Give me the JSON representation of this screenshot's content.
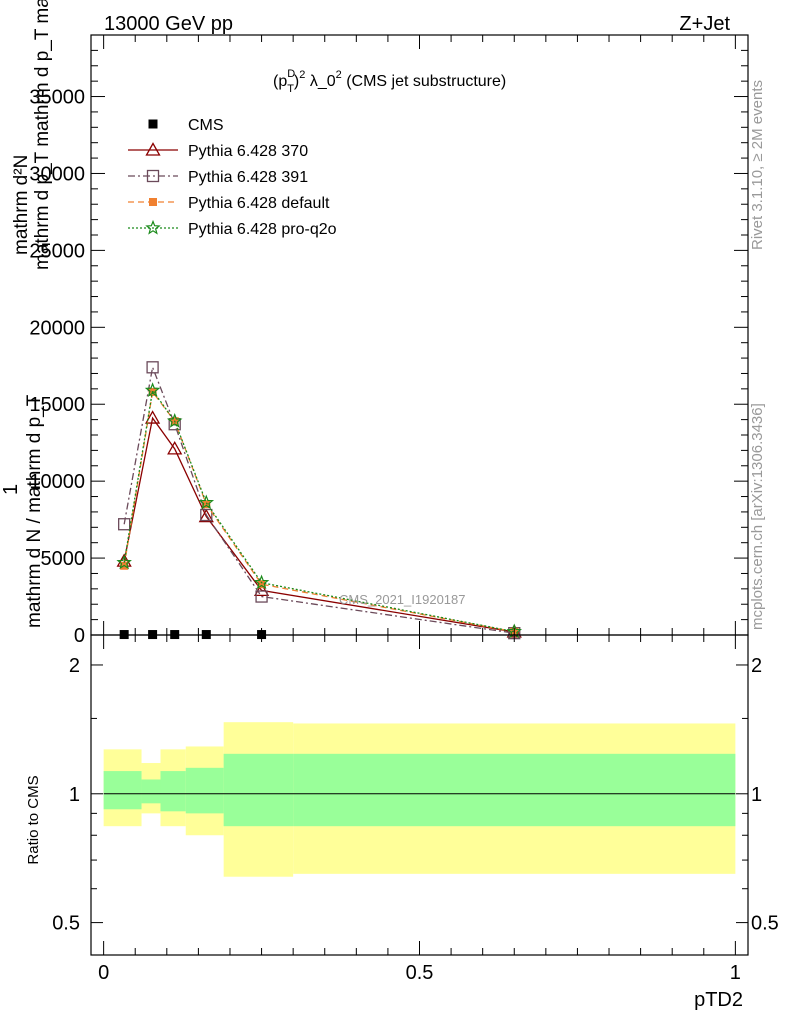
{
  "header": {
    "left": "13000 GeV pp",
    "right": "Z+Jet"
  },
  "side_labels": {
    "top": "Rivet 3.1.10, ≥ 2M events",
    "bottom": "mcplots.cern.ch [arXiv:1306.3436]"
  },
  "chart_data": [
    {
      "type": "line",
      "title": "(p_T^D)^2 λ_0^2 (CMS jet substructure)",
      "title_parts": {
        "lead": "(p",
        "sub": "T",
        "sup1": "D",
        "close": ")",
        "sup2": "2",
        "mid": " λ_0",
        "sup3": "2",
        "tail": " (CMS jet substructure)"
      },
      "ylabel": {
        "line1": "mathrm d²N",
        "line2": "mathrm d p_T mathrm d p_T mathrm d lambda",
        "one": "1",
        "den": "mathrm d N / mathrm d p_T"
      },
      "watermark": "CMS_2021_I1920187",
      "xlim": [
        -0.02,
        1.02
      ],
      "ylim": [
        0,
        39000
      ],
      "ytick_values": [
        0,
        5000,
        10000,
        15000,
        20000,
        25000,
        30000,
        35000
      ],
      "ytick_labels": [
        "0",
        "5000",
        "10000",
        "15000",
        "20000",
        "25000",
        "30000",
        "35000"
      ],
      "legend_position": "top-left",
      "series": [
        {
          "name": "CMS",
          "color": "#000000",
          "marker": "square-filled",
          "dash": "none",
          "x": [
            0.0325,
            0.0775,
            0.1125,
            0.1625,
            0.25
          ],
          "y": [
            30,
            30,
            30,
            30,
            30
          ]
        },
        {
          "name": "Pythia 6.428 370",
          "color": "#8b0000",
          "marker": "triangle-open",
          "dash": "solid",
          "x": [
            0.0325,
            0.0775,
            0.1125,
            0.1625,
            0.25,
            0.65
          ],
          "y": [
            4800,
            14100,
            12100,
            7700,
            2900,
            200
          ]
        },
        {
          "name": "Pythia 6.428 391",
          "color": "#6b4a5a",
          "marker": "square-open",
          "dash": "dashdot",
          "x": [
            0.0325,
            0.0775,
            0.1125,
            0.1625,
            0.25,
            0.65
          ],
          "y": [
            7200,
            17400,
            13700,
            7800,
            2500,
            120
          ]
        },
        {
          "name": "Pythia 6.428 default",
          "color": "#f08030",
          "marker": "square-filled-small",
          "dash": "dashed",
          "x": [
            0.0325,
            0.0775,
            0.1125,
            0.1625,
            0.25,
            0.65
          ],
          "y": [
            4500,
            15800,
            13900,
            8500,
            3300,
            210
          ]
        },
        {
          "name": "Pythia 6.428 pro-q2o",
          "color": "#1a8a1a",
          "marker": "star",
          "dash": "dotted",
          "x": [
            0.0325,
            0.0775,
            0.1125,
            0.1625,
            0.25,
            0.65
          ],
          "y": [
            4700,
            15900,
            13900,
            8600,
            3400,
            220
          ]
        }
      ]
    },
    {
      "type": "area",
      "ylabel": "Ratio to CMS",
      "xlabel": "pTD2",
      "xlim": [
        -0.02,
        1.02
      ],
      "ylim": [
        0.42,
        2.35
      ],
      "xtick_values": [
        0,
        0.5,
        1
      ],
      "xtick_labels": [
        "0",
        "0.5",
        "1"
      ],
      "ytick_values": [
        0.5,
        1,
        2
      ],
      "ytick_labels": [
        "0.5",
        "1",
        "2"
      ],
      "reference_line": 1,
      "bands": [
        {
          "name": "yellow",
          "color": "#ffff99",
          "edges": [
            0,
            0.06,
            0.09,
            0.13,
            0.19,
            0.3,
            1.0
          ],
          "lo": [
            0.84,
            0.9,
            0.84,
            0.8,
            0.64,
            0.65
          ],
          "hi": [
            1.27,
            1.18,
            1.27,
            1.29,
            1.47,
            1.46
          ]
        },
        {
          "name": "green",
          "color": "#99ff99",
          "edges": [
            0,
            0.06,
            0.09,
            0.13,
            0.19,
            0.3,
            1.0
          ],
          "lo": [
            0.92,
            0.95,
            0.91,
            0.9,
            0.84,
            0.84
          ],
          "hi": [
            1.13,
            1.08,
            1.13,
            1.15,
            1.24,
            1.24
          ]
        }
      ]
    }
  ]
}
